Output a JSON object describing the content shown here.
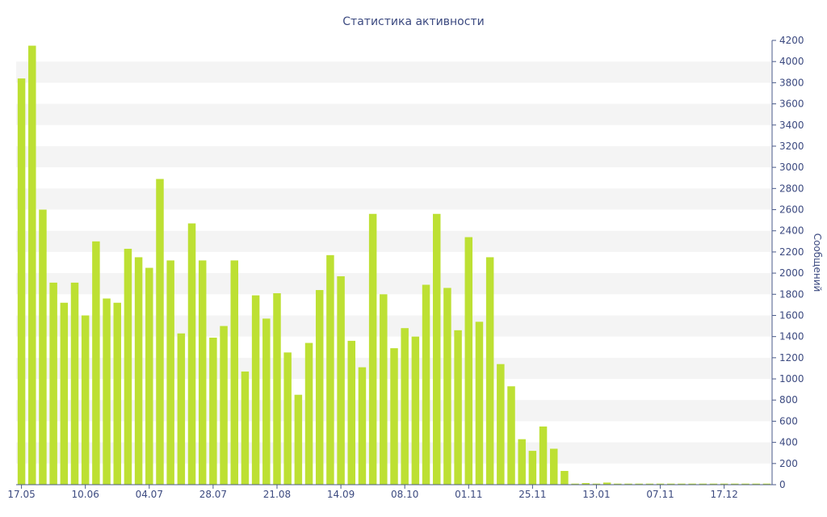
{
  "chart_data": {
    "type": "bar",
    "title": "Статистика активности",
    "ylabel": "Сообщений",
    "xlabel": "",
    "ylim": [
      0,
      4200
    ],
    "y_ticks": [
      0,
      200,
      400,
      600,
      800,
      1000,
      1200,
      1400,
      1600,
      1800,
      2000,
      2200,
      2400,
      2600,
      2800,
      3000,
      3200,
      3400,
      3600,
      3800,
      4000,
      4200
    ],
    "y_axis_position": "right",
    "x_tick_labels": [
      {
        "label": "17.05",
        "index": 0
      },
      {
        "label": "10.06",
        "index": 6
      },
      {
        "label": "04.07",
        "index": 12
      },
      {
        "label": "28.07",
        "index": 18
      },
      {
        "label": "21.08",
        "index": 24
      },
      {
        "label": "14.09",
        "index": 30
      },
      {
        "label": "08.10",
        "index": 36
      },
      {
        "label": "01.11",
        "index": 42
      },
      {
        "label": "25.11",
        "index": 48
      },
      {
        "label": "13.01",
        "index": 54
      },
      {
        "label": "07.11",
        "index": 60
      },
      {
        "label": "17.12",
        "index": 66
      }
    ],
    "values": [
      3840,
      4150,
      2600,
      1910,
      1720,
      1910,
      1600,
      2300,
      1760,
      1720,
      2230,
      2150,
      2050,
      2890,
      2120,
      1430,
      2470,
      2120,
      1390,
      1500,
      2120,
      1070,
      1790,
      1570,
      1810,
      1250,
      850,
      1340,
      1840,
      2170,
      1970,
      1360,
      1110,
      2560,
      1800,
      1290,
      1480,
      1400,
      1890,
      2560,
      1860,
      1460,
      2340,
      1540,
      2150,
      1140,
      930,
      430,
      320,
      550,
      340,
      130,
      10,
      15,
      10,
      20,
      10,
      10,
      10,
      10,
      10,
      10,
      10,
      10,
      10,
      10,
      10,
      10,
      10,
      10,
      10
    ],
    "bar_color": "#bde033",
    "band_color": "#f4f4f4",
    "grid": "alternating-bands",
    "legend": "none"
  }
}
